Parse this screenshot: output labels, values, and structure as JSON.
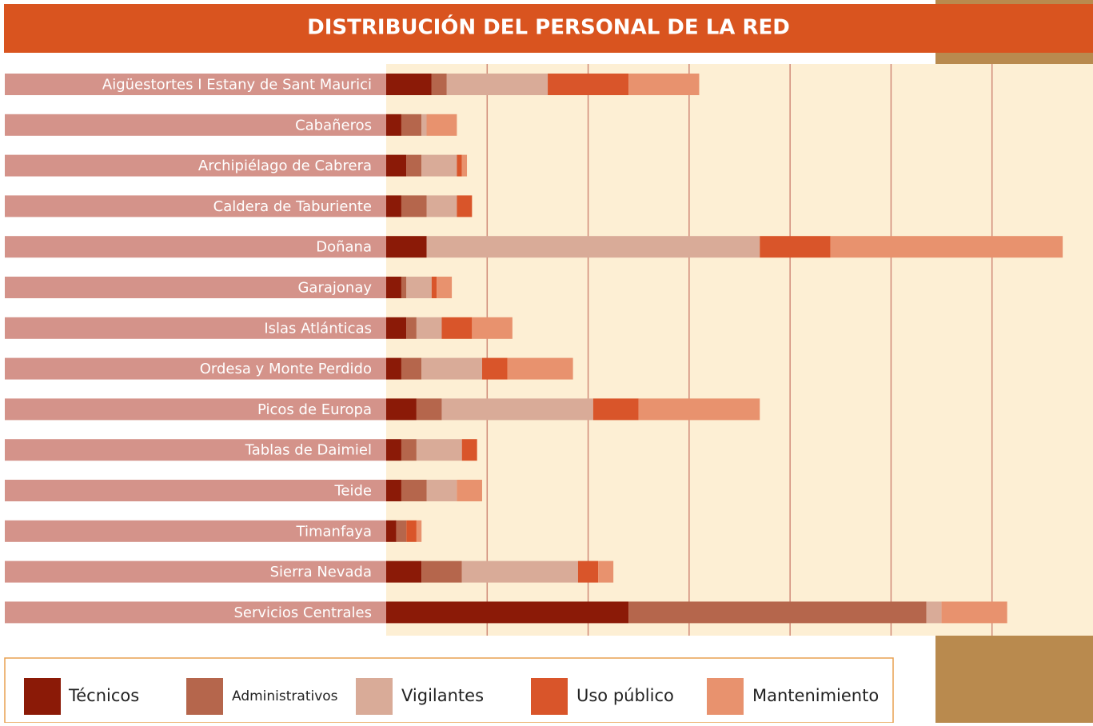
{
  "chart_data": {
    "type": "stacked-bar-horizontal",
    "title": "DISTRIBUCIÓN DEL PERSONAL DE LA RED",
    "categories": [
      "Aigüestortes I Estany de Sant Maurici",
      "Cabañeros",
      "Archipiélago de Cabrera",
      "Caldera de Taburiente",
      "Doñana",
      "Garajonay",
      "Islas Atlánticas",
      "Ordesa y Monte Perdido",
      "Picos de Europa",
      "Tablas de Daimiel",
      "Teide",
      "Timanfaya",
      "Sierra Nevada",
      "Servicios Centrales"
    ],
    "series": [
      {
        "name": "Técnicos",
        "color": "#8b1a07",
        "values": [
          4.5,
          1.5,
          2,
          1.5,
          4,
          1.5,
          2,
          1.5,
          3,
          1.5,
          1.5,
          1,
          3.5,
          24
        ]
      },
      {
        "name": "Administrativos",
        "color": "#b5664c",
        "values": [
          1.5,
          2,
          1.5,
          2.5,
          0,
          0.5,
          1,
          2,
          2.5,
          1.5,
          2.5,
          1,
          4,
          29.5
        ]
      },
      {
        "name": "Vigilantes",
        "color": "#d9ab98",
        "values": [
          10,
          0.5,
          3.5,
          3,
          33,
          2.5,
          2.5,
          6,
          15,
          4.5,
          3,
          0,
          11.5,
          1.5
        ]
      },
      {
        "name": "Uso público",
        "color": "#d9552a",
        "values": [
          8,
          0,
          0.5,
          1.5,
          7,
          0.5,
          3,
          2.5,
          4.5,
          1.5,
          0,
          1,
          2,
          0
        ]
      },
      {
        "name": "Mantenimiento",
        "color": "#e8926e",
        "values": [
          7,
          3,
          0.5,
          0,
          23,
          1.5,
          4,
          6.5,
          12,
          0,
          2.5,
          0.5,
          1.5,
          6.5
        ]
      }
    ],
    "xlim": [
      0,
      70
    ],
    "xticks": [
      10,
      20,
      30,
      40,
      50,
      60
    ],
    "grid": true
  }
}
